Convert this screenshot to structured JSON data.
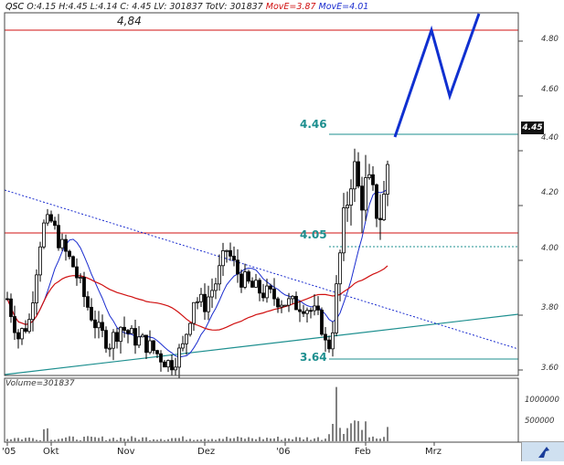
{
  "header": {
    "symbol": "QSC",
    "ohlc": "O:4.15 H:4.45 L:4.14 C: 4.45",
    "lv": "LV: 301837",
    "totv": "TotV: 301837",
    "move1": "MovE=3.87",
    "move2": "MovE=4.01"
  },
  "levels": {
    "l484": "4,84",
    "l446": "4.46",
    "l405": "4.05",
    "l364": "3.64",
    "last": "4.45"
  },
  "volume_label": "Volume=301837",
  "y_ticks": [
    "4.80",
    "4.60",
    "4.40",
    "4.20",
    "4.00",
    "3.80",
    "3.60"
  ],
  "vol_ticks": [
    "1000000",
    "500000"
  ],
  "x_ticks": [
    "'05",
    "Okt",
    "Nov",
    "Dez",
    "'06",
    "Feb",
    "Mrz"
  ],
  "colors": {
    "candle": "#000000",
    "move_fast": "#1a2ccf",
    "move_slow": "#d01010",
    "level_line": "#1d8f8f",
    "resistance": "#d01010",
    "forecast": "#1030d0"
  },
  "chart_data": {
    "type": "candlestick",
    "ylim": [
      3.58,
      4.92
    ],
    "horizontal_lines": [
      4.84,
      4.46,
      4.1,
      4.05,
      3.64
    ],
    "moving_average_values": [
      3.87,
      4.01
    ],
    "last_close": 4.45,
    "last_volume": 301837,
    "volume_ylim": [
      0,
      1200000
    ],
    "forecast_path": [
      4.45,
      4.84,
      4.6,
      4.9
    ]
  }
}
